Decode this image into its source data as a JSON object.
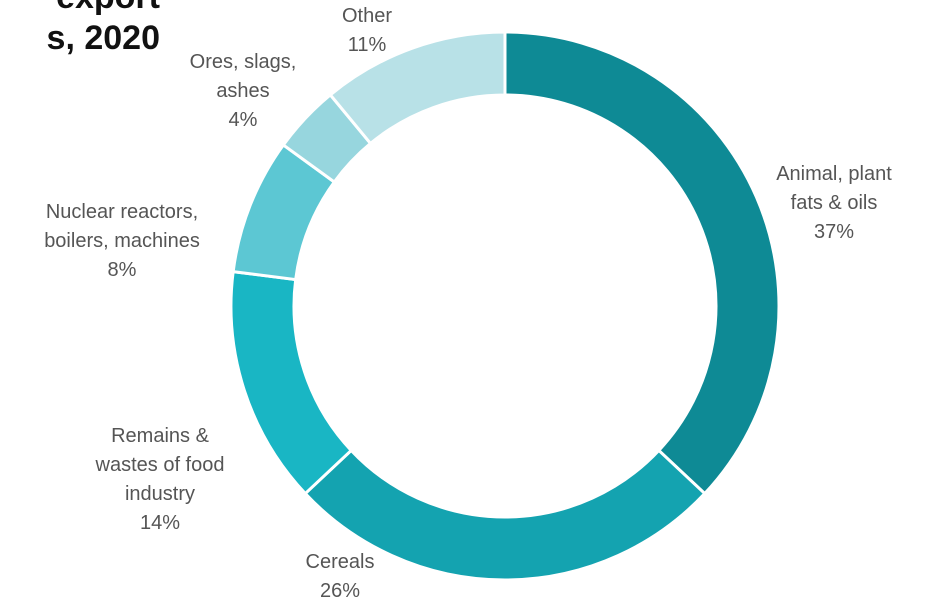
{
  "chart_data": {
    "type": "pie",
    "variant": "donut",
    "title_lines": [
      "export",
      "s, 2020"
    ],
    "slices": [
      {
        "name": "Animal, plant fats & oils",
        "label_lines": [
          "Animal, plant",
          "fats & oils"
        ],
        "value": 37,
        "value_label": "37%",
        "color": "#0E8A95"
      },
      {
        "name": "Cereals",
        "label_lines": [
          "Cereals"
        ],
        "value": 26,
        "value_label": "26%",
        "color": "#14A3B0"
      },
      {
        "name": "Remains & wastes of food industry",
        "label_lines": [
          "Remains &",
          "wastes of food",
          "industry"
        ],
        "value": 14,
        "value_label": "14%",
        "color": "#19B6C4"
      },
      {
        "name": "Nuclear reactors, boilers, machines",
        "label_lines": [
          "Nuclear reactors,",
          "boilers, machines"
        ],
        "value": 8,
        "value_label": "8%",
        "color": "#5CC7D3"
      },
      {
        "name": "Ores, slags, ashes",
        "label_lines": [
          "Ores, slags,",
          "ashes"
        ],
        "value": 4,
        "value_label": "4%",
        "color": "#97D6DE"
      },
      {
        "name": "Other",
        "label_lines": [
          "Other"
        ],
        "value": 11,
        "value_label": "11%",
        "color": "#B8E1E7"
      }
    ],
    "legend": "none"
  }
}
